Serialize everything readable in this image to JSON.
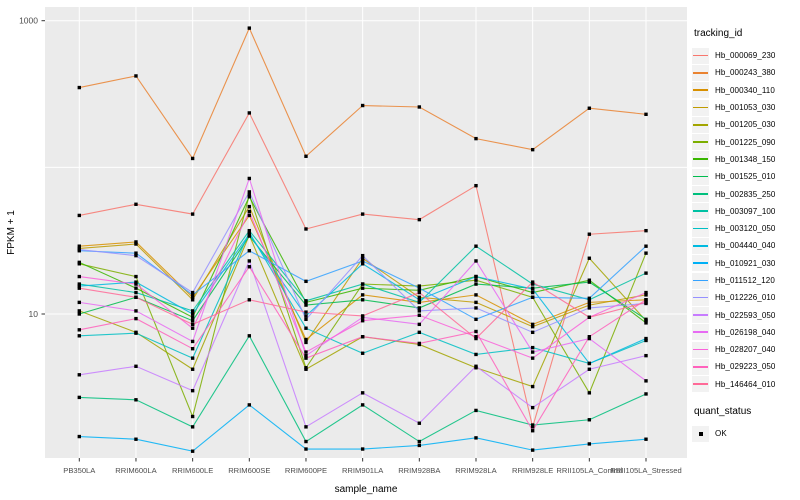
{
  "chart_data": {
    "type": "line",
    "title": "",
    "xlabel": "sample_name",
    "ylabel": "FPKM + 1",
    "y_scale": "log10",
    "ylim": [
      0.95,
      1250
    ],
    "y_tick_labels": [
      "1000",
      "10"
    ],
    "y_tick_values": [
      1000,
      10
    ],
    "y_gridline_values": [
      1000,
      100,
      10
    ],
    "grid": true,
    "legend_position": "right",
    "panel_bg": "#EBEBEB",
    "grid_color": "#FFFFFF",
    "point_color": "#000000",
    "tick_color": "#333333",
    "axis_text_color": "#4D4D4D",
    "x_categories": [
      "PB350LA",
      "RRIM600LA",
      "RRIM600LE",
      "RRIM600SE",
      "RRIM600PE",
      "RRIM901LA",
      "RRIM928BA",
      "RRIM928LA",
      "RRIM928LE",
      "RRII105LA_Control",
      "RRII105LA_Stressed"
    ],
    "series": [
      {
        "name": "Hb_000069_230",
        "color": "#F8766D",
        "values": [
          47,
          56,
          48,
          235,
          38,
          48,
          44,
          75,
          1.7,
          35,
          37
        ]
      },
      {
        "name": "Hb_000243_380",
        "color": "#EA8331",
        "values": [
          350,
          420,
          115,
          890,
          119,
          264,
          258,
          157,
          132,
          253,
          230
        ]
      },
      {
        "name": "Hb_000340_110",
        "color": "#D89000",
        "values": [
          29,
          31,
          13,
          47,
          6.7,
          13.5,
          12,
          13.5,
          8.5,
          12,
          12.5
        ]
      },
      {
        "name": "Hb_001053_030",
        "color": "#C09B00",
        "values": [
          28,
          30,
          12.5,
          54,
          6.4,
          24,
          13,
          12,
          8.2,
          11.5,
          13.5
        ]
      },
      {
        "name": "Hb_001205_030",
        "color": "#A3A500",
        "values": [
          10.5,
          7.5,
          4.2,
          34.5,
          4.2,
          7,
          6.2,
          4.3,
          3.2,
          24,
          9
        ]
      },
      {
        "name": "Hb_001225_090",
        "color": "#7CAE00",
        "values": [
          22,
          18,
          2.0,
          65,
          4.3,
          16,
          15.5,
          17,
          13,
          2.9,
          26
        ]
      },
      {
        "name": "Hb_001348_150",
        "color": "#39B600",
        "values": [
          22.5,
          15,
          9.5,
          63,
          12,
          15,
          14.5,
          18,
          14,
          17,
          8.7
        ]
      },
      {
        "name": "Hb_001525_010",
        "color": "#00BB4E",
        "values": [
          10,
          13,
          9,
          34,
          11.5,
          12.5,
          11,
          16,
          15,
          16.5,
          9.2
        ]
      },
      {
        "name": "Hb_002835_250",
        "color": "#00BF7D",
        "values": [
          2.7,
          2.6,
          1.7,
          7.1,
          1.35,
          2.4,
          1.35,
          2.2,
          1.75,
          1.9,
          2.85
        ]
      },
      {
        "name": "Hb_003097_100",
        "color": "#00C1A3",
        "values": [
          16,
          14,
          10.5,
          37,
          12.3,
          16,
          12,
          29,
          16,
          12.5,
          19
        ]
      },
      {
        "name": "Hb_003120_050",
        "color": "#00BFC4",
        "values": [
          7.1,
          7.4,
          5.0,
          36,
          8,
          5.4,
          7.5,
          5.3,
          5.9,
          4.6,
          6.6
        ]
      },
      {
        "name": "Hb_004440_040",
        "color": "#00BAE0",
        "values": [
          15.5,
          16.5,
          10,
          35,
          9.7,
          22,
          12.5,
          18,
          14.8,
          4.6,
          6.8
        ]
      },
      {
        "name": "Hb_010921_030",
        "color": "#00B0F6",
        "values": [
          1.46,
          1.4,
          1.16,
          2.4,
          1.2,
          1.2,
          1.27,
          1.43,
          1.18,
          1.3,
          1.4
        ]
      },
      {
        "name": "Hb_011512_120",
        "color": "#35A2FF",
        "values": [
          27,
          26,
          13.5,
          27,
          16.7,
          23,
          15,
          9.2,
          13,
          12.8,
          29
        ]
      },
      {
        "name": "Hb_012226_010",
        "color": "#9590FF",
        "values": [
          27.5,
          25,
          14,
          68,
          9.2,
          25,
          10.5,
          11,
          7.5,
          11,
          11.8
        ]
      },
      {
        "name": "Hb_022593_050",
        "color": "#C77CFF",
        "values": [
          3.85,
          4.4,
          3.0,
          23,
          1.7,
          2.9,
          1.8,
          4.4,
          2.3,
          4.2,
          5.2
        ]
      },
      {
        "name": "Hb_026198_040",
        "color": "#E76BF3",
        "values": [
          12,
          10.5,
          6.5,
          84,
          5.2,
          9.5,
          8.5,
          23,
          5.5,
          6.8,
          3.5
        ]
      },
      {
        "name": "Hb_028207_040",
        "color": "#FA62DB",
        "values": [
          18,
          16,
          8,
          50,
          5.5,
          9,
          9.8,
          7,
          5,
          9.5,
          14
        ]
      },
      {
        "name": "Hb_029223_050",
        "color": "#FF62BC",
        "values": [
          7.8,
          9.3,
          5.8,
          21,
          5,
          7,
          6.3,
          7.6,
          1.6,
          7,
          12.5
        ]
      },
      {
        "name": "Hb_146464_010",
        "color": "#FF6A98",
        "values": [
          15,
          13,
          8.5,
          12.5,
          10.3,
          9.7,
          14,
          6.8,
          16.5,
          9.5,
          12
        ]
      }
    ]
  },
  "legends": {
    "tracking_id": {
      "title": "tracking_id"
    },
    "quant_status": {
      "title": "quant_status",
      "entries": [
        {
          "label": "OK",
          "symbol": "black-square"
        }
      ]
    }
  }
}
